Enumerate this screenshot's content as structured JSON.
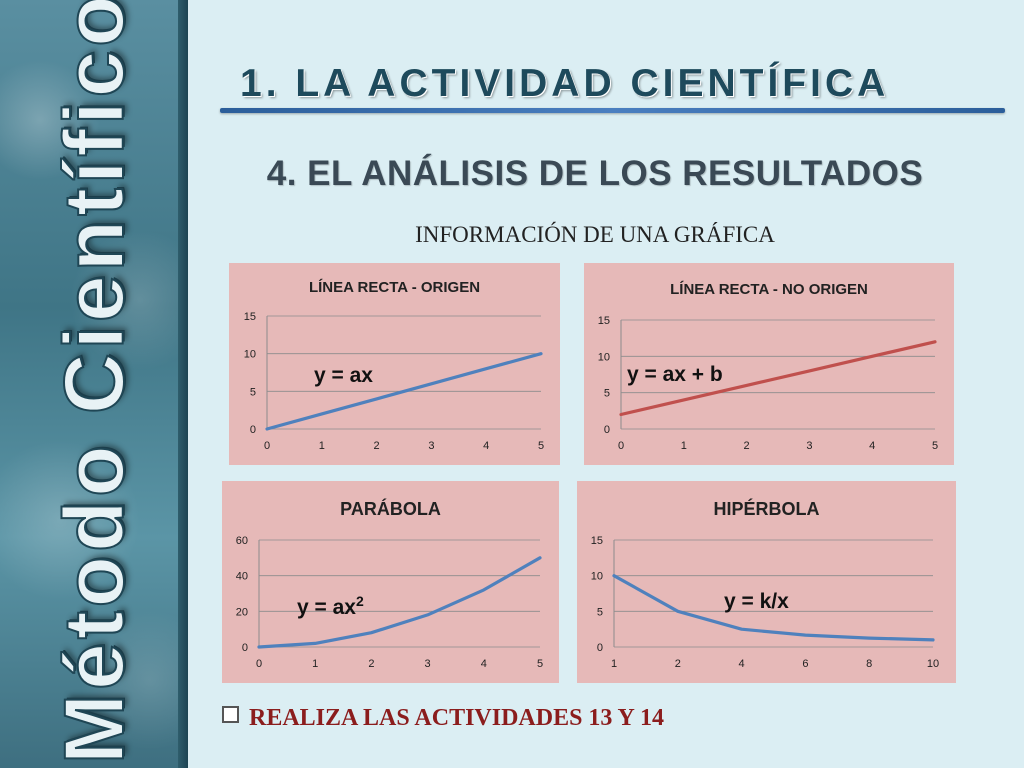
{
  "sidebar": {
    "title": "Método Científico"
  },
  "header": {
    "title": "1. LA ACTIVIDAD CIENTÍFICA",
    "subtitle": "4. EL ANÁLISIS DE LOS RESULTADOS",
    "section_label": "INFORMACIÓN DE UNA GRÁFICA"
  },
  "footer": {
    "text": "REALIZA LAS ACTIVIDADES 13 Y 14",
    "bullet_icon": "checkbox-icon"
  },
  "colors": {
    "panel_bg": "#e6b9b8",
    "blue_line": "#4f81bd",
    "red_line": "#c0504d",
    "footer_text": "#8b1d1d"
  },
  "chart_data": [
    {
      "type": "line",
      "title": "LÍNEA RECTA - ORIGEN",
      "equation": "y = ax",
      "equation_sup": "",
      "categories": [
        "0",
        "1",
        "2",
        "3",
        "4",
        "5"
      ],
      "series": [
        {
          "values": [
            0,
            2,
            4,
            6,
            8,
            10
          ],
          "color": "#4f81bd"
        }
      ],
      "yticks": [
        0,
        5,
        10,
        15
      ],
      "ylim": [
        0,
        15
      ],
      "grid": true
    },
    {
      "type": "line",
      "title": "LÍNEA RECTA - NO ORIGEN",
      "equation": "y = ax + b",
      "equation_sup": "",
      "categories": [
        "0",
        "1",
        "2",
        "3",
        "4",
        "5"
      ],
      "series": [
        {
          "values": [
            2,
            4,
            6,
            8,
            10,
            12
          ],
          "color": "#c0504d"
        }
      ],
      "yticks": [
        0,
        5,
        10,
        15
      ],
      "ylim": [
        0,
        15
      ],
      "grid": true
    },
    {
      "type": "line",
      "title": "PARÁBOLA",
      "equation": "y = ax",
      "equation_sup": "2",
      "categories": [
        "0",
        "1",
        "2",
        "3",
        "4",
        "5"
      ],
      "series": [
        {
          "values": [
            0,
            2,
            8,
            18,
            32,
            50
          ],
          "color": "#4f81bd"
        }
      ],
      "yticks": [
        0,
        20,
        40,
        60
      ],
      "ylim": [
        0,
        60
      ],
      "grid": true
    },
    {
      "type": "line",
      "title": "HIPÉRBOLA",
      "equation": "y = k/x",
      "equation_sup": "",
      "categories": [
        "1",
        "2",
        "4",
        "6",
        "8",
        "10"
      ],
      "series": [
        {
          "values": [
            10,
            5,
            2.5,
            1.67,
            1.25,
            1
          ],
          "color": "#4f81bd"
        }
      ],
      "yticks": [
        0,
        5,
        10,
        15
      ],
      "ylim": [
        0,
        15
      ],
      "grid": true
    }
  ]
}
